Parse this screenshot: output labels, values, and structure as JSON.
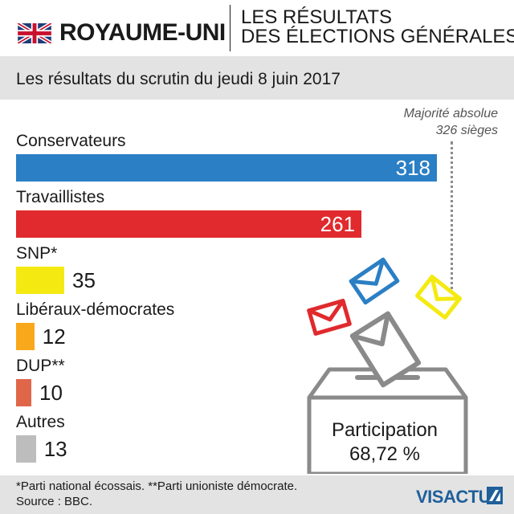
{
  "header": {
    "country": "ROYAUME-UNI",
    "title_line1": "LES RÉSULTATS",
    "title_line2": "DES ÉLECTIONS GÉNÉRALES"
  },
  "subtitle": "Les résultats du scrutin du jeudi 8 juin 2017",
  "majority": {
    "line1": "Majorité absolue",
    "line2": "326 sièges",
    "value": 326
  },
  "participation": {
    "label": "Participation",
    "value": "68,72 %"
  },
  "footer": {
    "footnote": "*Parti national écossais. **Parti unioniste démocrate.",
    "source": "Source : BBC.",
    "logo": "VISACTU"
  },
  "chart_data": {
    "type": "bar",
    "orientation": "horizontal",
    "categories": [
      "Conservateurs",
      "Travaillistes",
      "SNP*",
      "Libéraux-démocrates",
      "DUP**",
      "Autres"
    ],
    "values": [
      318,
      261,
      35,
      12,
      10,
      13
    ],
    "colors": [
      "#2b7fc4",
      "#e02a2d",
      "#f4ea11",
      "#f9a81b",
      "#e0664a",
      "#bdbdbd"
    ],
    "value_labels": [
      "318",
      "261",
      "35",
      "12",
      "10",
      "13"
    ],
    "reference_line": {
      "value": 326,
      "style": "dotted"
    },
    "title": "Les résultats du scrutin du jeudi 8 juin 2017",
    "xlabel": "",
    "ylabel": ""
  }
}
